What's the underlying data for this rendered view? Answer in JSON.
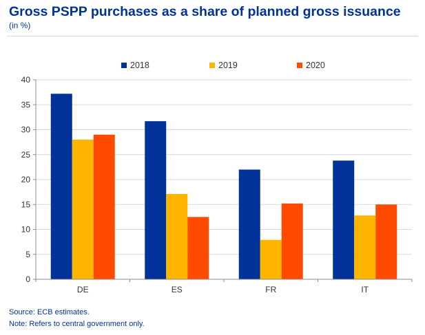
{
  "header": {
    "title": "Gross PSPP purchases as a share of planned gross issuance",
    "subtitle": "(in %)"
  },
  "footer": {
    "source": "Source: ECB estimates.",
    "note": "Note: Refers to central government only."
  },
  "chart_data": {
    "type": "bar",
    "categories": [
      "DE",
      "ES",
      "FR",
      "IT"
    ],
    "series": [
      {
        "name": "2018",
        "color": "#003299",
        "values": [
          37.2,
          31.7,
          22.0,
          23.8
        ]
      },
      {
        "name": "2019",
        "color": "#ffb400",
        "values": [
          28.0,
          17.1,
          7.9,
          12.8
        ]
      },
      {
        "name": "2020",
        "color": "#ff4b00",
        "values": [
          29.0,
          12.5,
          15.2,
          15.0
        ]
      }
    ],
    "ylim": [
      0,
      40
    ],
    "yticks": [
      0,
      5,
      10,
      15,
      20,
      25,
      30,
      35,
      40
    ],
    "grid": true,
    "legend_position": "top-center",
    "xlabel": "",
    "ylabel": ""
  }
}
